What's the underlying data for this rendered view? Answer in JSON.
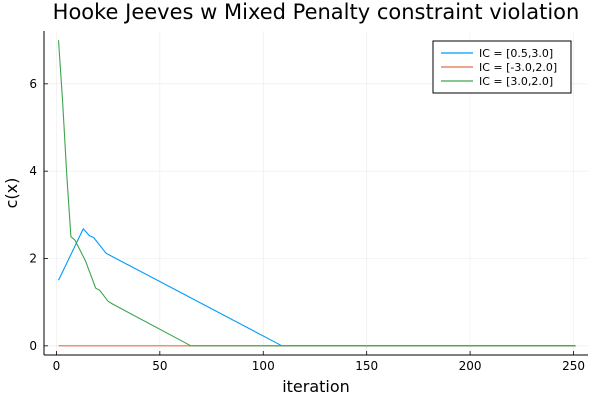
{
  "chart_data": {
    "type": "line",
    "title": "Hooke Jeeves w Mixed Penalty constraint violation",
    "xlabel": "iteration",
    "ylabel": "c(x)",
    "xlim": [
      -6,
      257
    ],
    "ylim": [
      -0.21,
      7.21
    ],
    "xticks": [
      0,
      50,
      100,
      150,
      200,
      250
    ],
    "yticks": [
      0,
      2,
      4,
      6
    ],
    "xtick_labels": [
      "0",
      "50",
      "100",
      "150",
      "200",
      "250"
    ],
    "ytick_labels": [
      "0",
      "2",
      "4",
      "6"
    ],
    "grid": true,
    "legend_position": "top-right",
    "series": [
      {
        "name": "IC = [0.5,3.0]",
        "color": "#009AFA",
        "x": [
          1,
          13,
          16,
          18,
          24,
          109,
          251
        ],
        "y": [
          1.5,
          2.68,
          2.52,
          2.48,
          2.12,
          0.0,
          0.0
        ]
      },
      {
        "name": "IC = [-3.0,2.0]",
        "color": "#E26F46",
        "x": [
          1,
          251
        ],
        "y": [
          0.0,
          0.0
        ]
      },
      {
        "name": "IC = [3.0,2.0]",
        "color": "#3EA44E",
        "x": [
          1,
          3,
          5,
          7,
          9,
          14,
          19,
          21,
          25,
          27,
          65,
          251
        ],
        "y": [
          7.0,
          5.6,
          3.9,
          2.5,
          2.42,
          1.95,
          1.32,
          1.27,
          1.02,
          0.96,
          0.0,
          0.0
        ]
      }
    ]
  }
}
